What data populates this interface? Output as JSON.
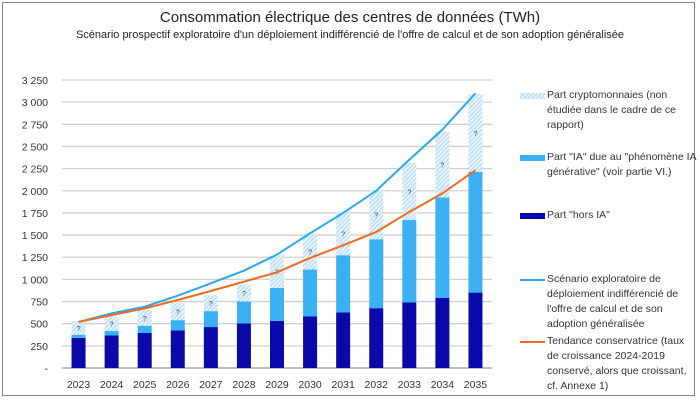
{
  "chart_data": {
    "type": "bar",
    "title": "Consommation électrique des centres de données (TWh)",
    "subtitle": "Scénario prospectif exploratoire d'un déploiement indifférencié de l'offre de calcul et de son adoption généralisée",
    "xlabel": "",
    "ylabel": "",
    "ylim": [
      0,
      3250
    ],
    "yticks": [
      "-",
      "250",
      "500",
      "750",
      "1 000",
      "1 250",
      "1 500",
      "1 750",
      "2 000",
      "2 250",
      "2 500",
      "2 750",
      "3 000",
      "3 250"
    ],
    "grid": true,
    "legend_position": "right",
    "categories": [
      "2023",
      "2024",
      "2025",
      "2026",
      "2027",
      "2028",
      "2029",
      "2030",
      "2031",
      "2032",
      "2033",
      "2034",
      "2035"
    ],
    "stacked": true,
    "bar_marker": "?",
    "series": [
      {
        "name": "Part \"hors IA\"",
        "kind": "bar",
        "color": "#0a0aaa",
        "values": [
          340,
          367,
          395,
          425,
          462,
          504,
          532,
          584,
          628,
          675,
          739,
          793,
          851
        ]
      },
      {
        "name": "Part \"IA\" due au \"phénomène IA générative\" (voir partie VI.)",
        "kind": "bar",
        "color": "#3bb0f5",
        "values": [
          35,
          53,
          82,
          115,
          180,
          248,
          372,
          527,
          645,
          778,
          931,
          1132,
          1362
        ]
      },
      {
        "name": "Part cryptomonnaies (non étudiée dans le cadre de ce rapport)",
        "kind": "bar-hatched",
        "color": "#a9d6f2",
        "values": [
          155,
          160,
          178,
          193,
          180,
          188,
          366,
          406,
          492,
          556,
          648,
          742,
          879
        ]
      },
      {
        "name": "Scénario exploratoire de déploiement indifférencié de l'offre de calcul et de son adoption généralisée",
        "kind": "line",
        "color": "#2aa7ee",
        "values": [
          520,
          617,
          692,
          816,
          956,
          1098,
          1280,
          1520,
          1750,
          2000,
          2350,
          2690,
          3100
        ]
      },
      {
        "name": "Tendance conservatrice (taux de croissance 2024-2019 conservé, alors que croissant, cf. Annexe 1)",
        "kind": "line",
        "color": "#f06a1e",
        "values": [
          520,
          597,
          673,
          767,
          869,
          974,
          1080,
          1242,
          1385,
          1535,
          1761,
          1970,
          2232
        ]
      }
    ]
  }
}
